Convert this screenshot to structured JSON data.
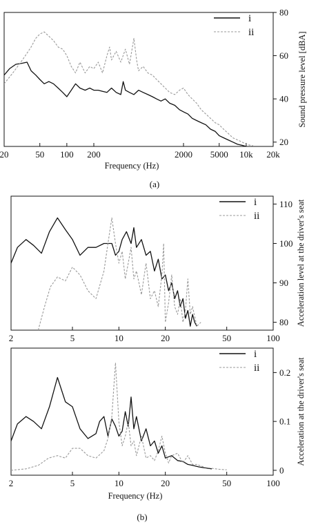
{
  "chart_data": [
    {
      "id": "a",
      "type": "line",
      "xscale": "log",
      "xlim": [
        20,
        20000
      ],
      "ylim": [
        18,
        80
      ],
      "xlabel": "Frequency (Hz)",
      "ylabel": "Sound pressure level [dBA]",
      "xticks": [
        20,
        50,
        100,
        200,
        2000,
        5000,
        10000,
        20000
      ],
      "xtick_labels": [
        "20",
        "50",
        "100",
        "200",
        "2000",
        "5000",
        "10k",
        "20k"
      ],
      "yticks": [
        20,
        40,
        60,
        80
      ],
      "ytick_labels": [
        "20",
        "40",
        "60",
        "80"
      ],
      "yaxis_side": "right",
      "legend": "top-right",
      "caption": "(a)",
      "series": [
        {
          "name": "i",
          "style": "solid",
          "color": "#111111",
          "x": [
            20,
            23,
            27,
            32,
            36,
            40,
            45,
            50,
            56,
            63,
            71,
            80,
            90,
            100,
            112,
            125,
            140,
            160,
            180,
            200,
            224,
            250,
            280,
            315,
            355,
            400,
            425,
            450,
            500,
            560,
            630,
            710,
            800,
            900,
            1000,
            1120,
            1250,
            1400,
            1600,
            1800,
            2000,
            2240,
            2500,
            2800,
            3150,
            3550,
            4000,
            4500,
            5000,
            5600,
            6300,
            7100,
            8000,
            9000,
            10000
          ],
          "y": [
            51,
            54,
            56,
            56.5,
            57,
            53,
            51,
            49,
            47,
            48,
            47,
            45,
            43,
            41,
            44,
            47,
            45,
            44,
            45,
            44,
            44,
            43.5,
            43,
            45,
            43,
            42,
            48,
            44,
            43,
            42,
            44,
            43,
            42,
            41,
            40,
            39,
            40,
            38,
            37,
            35,
            34,
            33,
            31,
            30,
            29,
            28,
            26,
            25,
            23,
            22,
            21,
            20,
            19,
            18.5,
            18
          ]
        },
        {
          "name": "ii",
          "style": "dashed",
          "color": "#999999",
          "x": [
            20,
            25,
            32,
            40,
            45,
            50,
            56,
            63,
            71,
            80,
            90,
            100,
            112,
            125,
            140,
            160,
            180,
            200,
            224,
            250,
            280,
            300,
            315,
            355,
            400,
            450,
            500,
            560,
            600,
            630,
            710,
            800,
            900,
            1000,
            1120,
            1250,
            1400,
            1600,
            1800,
            2000,
            2240,
            2500,
            2800,
            3150,
            3550,
            4000,
            4500,
            5000,
            5600,
            6300,
            7100,
            8000,
            9000,
            10000,
            11200,
            12500
          ],
          "y": [
            47,
            52,
            58,
            64,
            68,
            70,
            71,
            69,
            67,
            64,
            63,
            60,
            55,
            52,
            57,
            52,
            55,
            54,
            57,
            52,
            60,
            64,
            58,
            62,
            57,
            63,
            56,
            68,
            58,
            53,
            55,
            52,
            51,
            49,
            47,
            45,
            43,
            42,
            44,
            45,
            42,
            40,
            38,
            35,
            33,
            31,
            29,
            28,
            26,
            24,
            22,
            21,
            20,
            19,
            18.5,
            18
          ]
        }
      ]
    },
    {
      "id": "b-top",
      "type": "line",
      "xscale": "log",
      "xlim": [
        2,
        100
      ],
      "ylim": [
        78,
        112
      ],
      "xlabel": "",
      "ylabel": "Acceleration level at the driver's seat",
      "xticks": [
        2,
        5,
        10,
        20,
        50,
        100
      ],
      "xtick_labels": [
        "2",
        "5",
        "10",
        "20",
        "50",
        "100"
      ],
      "yticks": [
        80,
        90,
        100,
        110
      ],
      "ytick_labels": [
        "80",
        "90",
        "100",
        "110"
      ],
      "yaxis_side": "right",
      "legend": "top-right",
      "series": [
        {
          "name": "i",
          "style": "solid",
          "color": "#111111",
          "x": [
            2,
            2.2,
            2.5,
            2.8,
            3.15,
            3.55,
            4,
            4.5,
            5,
            5.6,
            6.3,
            7.1,
            8,
            9,
            9.5,
            10,
            10.5,
            11.2,
            12,
            12.5,
            13,
            14,
            15,
            16,
            17,
            18,
            19,
            20,
            21,
            22,
            23,
            24,
            25,
            26,
            27,
            28,
            29,
            30,
            31,
            32
          ],
          "y": [
            95,
            99,
            101,
            99.5,
            97.5,
            103,
            106.5,
            103.5,
            101,
            97,
            99,
            99,
            100,
            100,
            97,
            98,
            101,
            103,
            100,
            104,
            99,
            101,
            97,
            98,
            93,
            96,
            91,
            92,
            88,
            90,
            86,
            88,
            84,
            86,
            81,
            83,
            79,
            82,
            80,
            79
          ]
        },
        {
          "name": "ii",
          "style": "dashed",
          "color": "#999999",
          "x": [
            3,
            3.3,
            3.6,
            4,
            4.5,
            5,
            5.6,
            6.3,
            7.1,
            8,
            8.5,
            9,
            9.5,
            10,
            10.5,
            11,
            11.5,
            12,
            12.5,
            13,
            14,
            15,
            16,
            17,
            18,
            19,
            19.5,
            20,
            21,
            22,
            23,
            24,
            25,
            26,
            27,
            28,
            29,
            30,
            32,
            34
          ],
          "y": [
            78,
            84,
            89,
            91.5,
            90.5,
            94,
            92,
            88,
            86,
            93,
            100,
            106.5,
            100,
            95,
            98,
            91,
            95,
            99,
            91,
            93,
            87,
            95,
            86,
            88,
            84,
            92,
            100,
            80,
            85,
            92,
            84,
            82,
            86,
            80,
            83,
            91,
            82,
            84,
            79,
            80
          ]
        }
      ]
    },
    {
      "id": "b-bottom",
      "type": "line",
      "xscale": "log",
      "xlim": [
        2,
        100
      ],
      "ylim": [
        -0.01,
        0.25
      ],
      "xlabel": "Frequency (Hz)",
      "ylabel": "Acceleration at the driver's seat",
      "xticks": [
        2,
        5,
        10,
        20,
        50,
        100
      ],
      "xtick_labels": [
        "2",
        "5",
        "10",
        "20",
        "50",
        "100"
      ],
      "yticks": [
        0,
        0.1,
        0.2
      ],
      "ytick_labels": [
        "0",
        "0.1",
        "0.2"
      ],
      "yaxis_side": "right",
      "legend": "top-right",
      "caption": "(b)",
      "series": [
        {
          "name": "i",
          "style": "solid",
          "color": "#111111",
          "x": [
            2,
            2.2,
            2.5,
            2.8,
            3.15,
            3.55,
            4,
            4.5,
            5,
            5.6,
            6.3,
            7.1,
            7.5,
            8,
            8.5,
            9,
            9.5,
            10,
            10.5,
            11,
            11.5,
            12,
            12.5,
            13,
            14,
            15,
            16,
            17,
            18,
            19,
            20,
            22,
            24,
            26,
            28,
            30,
            33,
            36,
            40
          ],
          "y": [
            0.06,
            0.095,
            0.11,
            0.1,
            0.085,
            0.13,
            0.19,
            0.14,
            0.13,
            0.085,
            0.065,
            0.075,
            0.1,
            0.11,
            0.07,
            0.105,
            0.09,
            0.07,
            0.08,
            0.12,
            0.09,
            0.15,
            0.085,
            0.11,
            0.06,
            0.085,
            0.05,
            0.06,
            0.035,
            0.05,
            0.025,
            0.03,
            0.02,
            0.018,
            0.012,
            0.01,
            0.007,
            0.005,
            0.003
          ]
        },
        {
          "name": "ii",
          "style": "dashed",
          "color": "#999999",
          "x": [
            2,
            2.5,
            3,
            3.5,
            4,
            4.5,
            5,
            5.6,
            6.3,
            7.1,
            8,
            8.5,
            9,
            9.5,
            10,
            10.5,
            11,
            11.5,
            12,
            12.5,
            13,
            14,
            15,
            16,
            17,
            18,
            19,
            20,
            21,
            22,
            24,
            26,
            28,
            30,
            32,
            36,
            40,
            45,
            50
          ],
          "y": [
            0.0,
            0.003,
            0.01,
            0.025,
            0.03,
            0.025,
            0.045,
            0.045,
            0.03,
            0.025,
            0.04,
            0.065,
            0.11,
            0.22,
            0.1,
            0.05,
            0.07,
            0.1,
            0.05,
            0.06,
            0.03,
            0.07,
            0.025,
            0.03,
            0.02,
            0.04,
            0.07,
            0.035,
            0.015,
            0.03,
            0.035,
            0.015,
            0.03,
            0.012,
            0.012,
            0.006,
            0.004,
            0.002,
            0.001
          ]
        }
      ]
    }
  ]
}
